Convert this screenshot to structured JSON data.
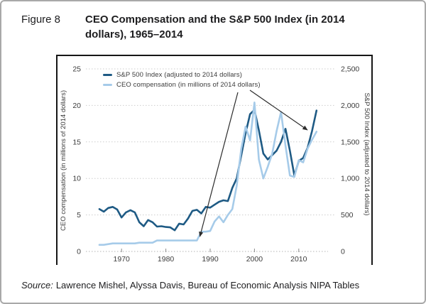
{
  "figure": {
    "label": "Figure 8",
    "title": "CEO Compensation and the S&P 500 Index (in 2014 dollars), 1965–2014"
  },
  "source": {
    "prefix": "Source:",
    "text": "Lawrence Mishel, Alyssa Davis, Bureau of Economic Analysis NIPA Tables"
  },
  "colors": {
    "sp500_line": "#1e5a84",
    "ceo_line": "#a6cbe9",
    "grid": "#cdcdcd",
    "axis_line": "#b3b3b3",
    "tick_text": "#3b3b3b",
    "frame_border": "#161616",
    "callout": "#2b2b2b"
  },
  "chart_data": {
    "type": "line",
    "title": "CEO Compensation and the S&P 500 Index (in 2014 dollars), 1965–2014",
    "x": [
      1965,
      1966,
      1967,
      1968,
      1969,
      1970,
      1971,
      1972,
      1973,
      1974,
      1975,
      1976,
      1977,
      1978,
      1979,
      1980,
      1981,
      1982,
      1983,
      1984,
      1985,
      1986,
      1987,
      1988,
      1989,
      1990,
      1991,
      1992,
      1993,
      1994,
      1995,
      1996,
      1997,
      1998,
      1999,
      2000,
      2001,
      2002,
      2003,
      2004,
      2005,
      2006,
      2007,
      2008,
      2009,
      2010,
      2011,
      2012,
      2013,
      2014
    ],
    "series": [
      {
        "name": "S&P 500 Index (adjusted to 2014 dollars)",
        "axis": "right",
        "color": "#1e5a84",
        "values": [
          580,
          545,
          595,
          610,
          575,
          465,
          535,
          565,
          535,
          400,
          345,
          430,
          400,
          340,
          345,
          335,
          330,
          290,
          380,
          370,
          450,
          555,
          570,
          520,
          610,
          600,
          640,
          680,
          700,
          690,
          870,
          1000,
          1310,
          1620,
          1880,
          1940,
          1660,
          1340,
          1260,
          1320,
          1380,
          1500,
          1680,
          1380,
          1040,
          1240,
          1280,
          1420,
          1650,
          1930
        ]
      },
      {
        "name": "CEO compensation (in millions of 2014 dollars)",
        "axis": "left",
        "color": "#a6cbe9",
        "values": [
          0.9,
          0.9,
          1.0,
          1.1,
          1.1,
          1.1,
          1.1,
          1.1,
          1.1,
          1.2,
          1.2,
          1.2,
          1.2,
          1.5,
          1.5,
          1.5,
          1.5,
          1.5,
          1.5,
          1.5,
          1.5,
          1.5,
          1.5,
          2.7,
          2.7,
          2.8,
          4.1,
          4.8,
          4.0,
          5.0,
          5.8,
          9.0,
          14.0,
          17.1,
          15.2,
          20.4,
          12.6,
          10.0,
          11.6,
          13.4,
          16.5,
          19.1,
          14.5,
          10.4,
          10.2,
          12.5,
          12.2,
          14.1,
          15.3,
          16.4
        ]
      }
    ],
    "left_axis": {
      "label": "CEO compensation (in millions of 2014 dollars)",
      "ticks": [
        0,
        5,
        10,
        15,
        20,
        25
      ],
      "range": [
        0,
        25
      ]
    },
    "right_axis": {
      "label": "S&P 500 Index (adjusted to 2014 dollars)",
      "ticks": [
        "0",
        "500",
        "1,000",
        "1,500",
        "2,000",
        "2,500"
      ],
      "tick_values": [
        0,
        500,
        1000,
        1500,
        2000,
        2500
      ],
      "range": [
        0,
        2500
      ]
    },
    "x_axis": {
      "ticks": [
        1970,
        1980,
        1990,
        2000,
        2010
      ],
      "range": [
        1965,
        2014
      ]
    },
    "legend_position": "top-left",
    "grid": true
  }
}
